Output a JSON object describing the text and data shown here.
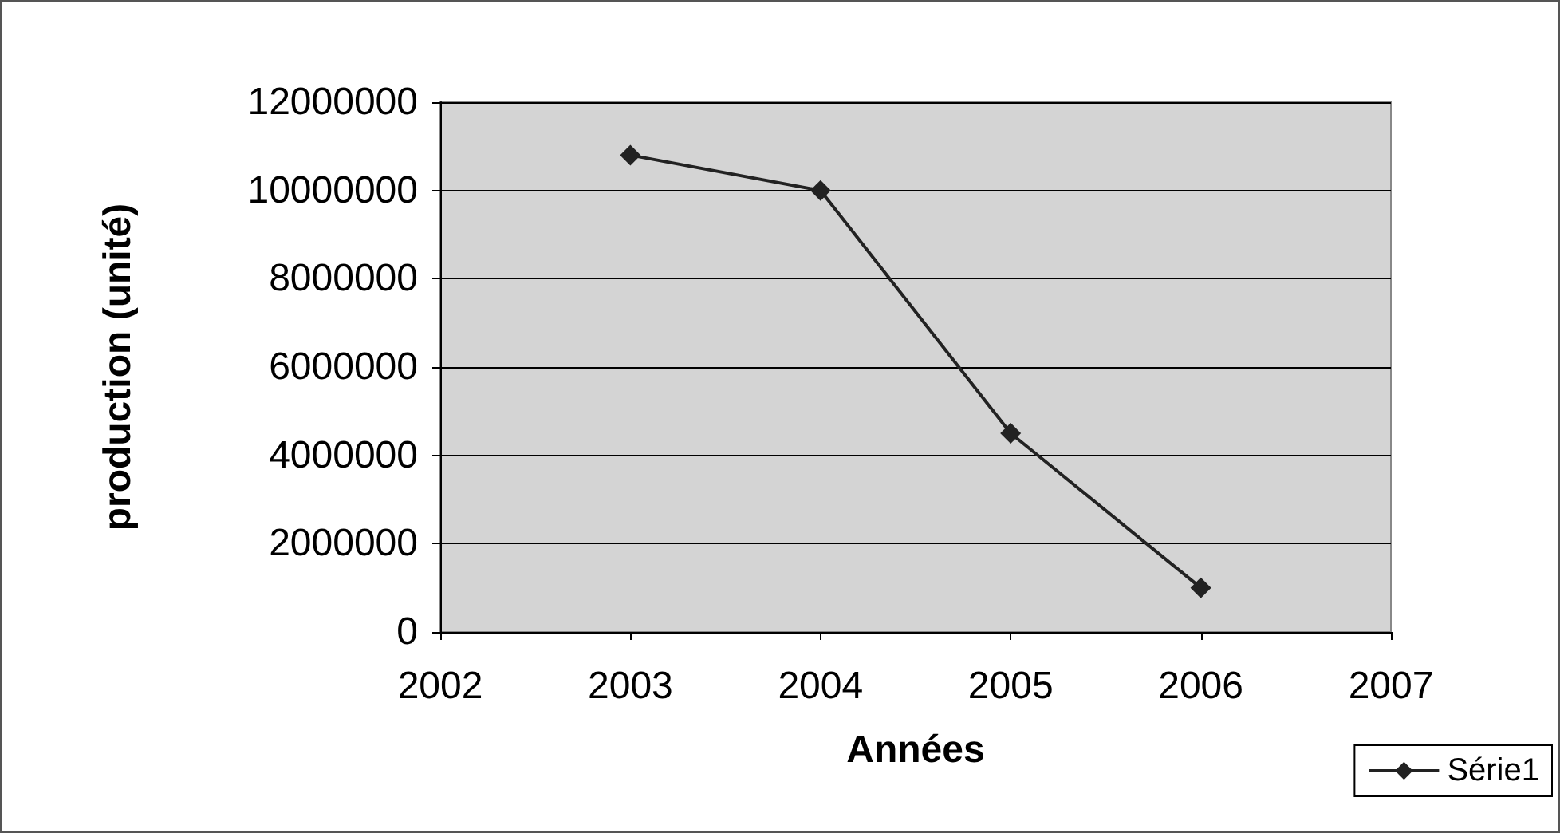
{
  "chart_data": {
    "type": "line",
    "xlabel": "Années",
    "ylabel": "production (unité)",
    "x": [
      2003,
      2004,
      2005,
      2006
    ],
    "series": [
      {
        "name": "Série1",
        "color": "#222222",
        "values": [
          10800000,
          10000000,
          4500000,
          1000000
        ]
      }
    ],
    "xlim": [
      2002,
      2007
    ],
    "xticks": [
      2002,
      2003,
      2004,
      2005,
      2006,
      2007
    ],
    "ylim": [
      0,
      12000000
    ],
    "yticks": [
      0,
      2000000,
      4000000,
      6000000,
      8000000,
      10000000,
      12000000
    ],
    "grid": "y",
    "legend": "bottom right",
    "marker": "diamond",
    "line_style": "solid"
  }
}
